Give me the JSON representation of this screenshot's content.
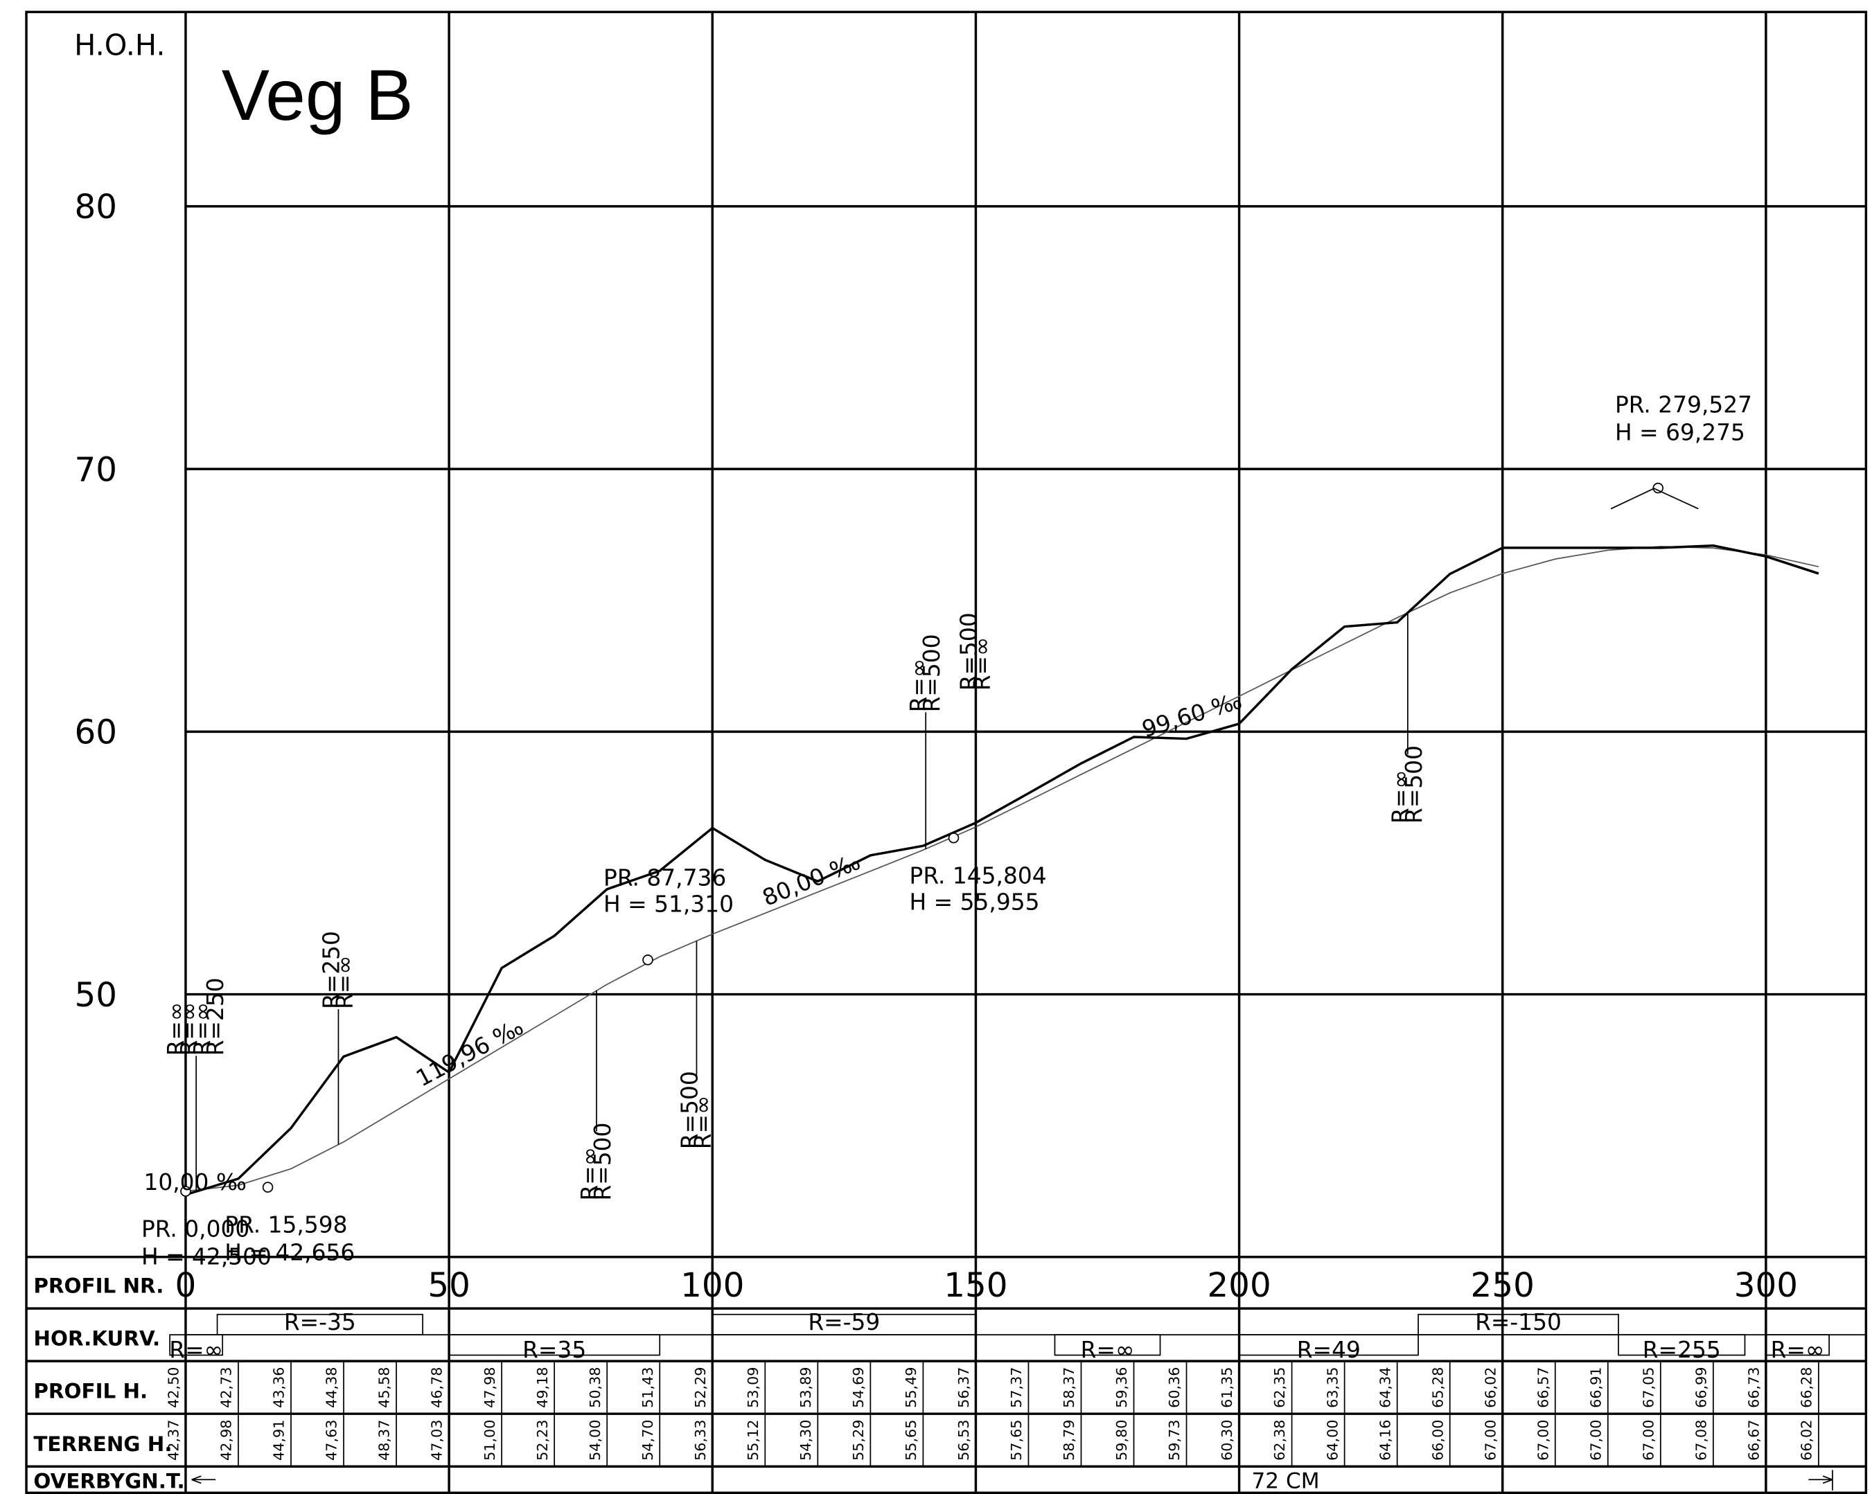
{
  "chart_data": {
    "type": "profile",
    "title": "Veg B",
    "y_axis_label": "H.O.H.",
    "x_axis_label": "PROFIL NR.",
    "xlim": [
      0,
      319
    ],
    "ylim": [
      40,
      87.4
    ],
    "xticks": [
      0,
      50,
      100,
      150,
      200,
      250,
      300
    ],
    "yticks": [
      50,
      60,
      70,
      80
    ],
    "grid": true,
    "x": [
      0,
      10,
      20,
      30,
      40,
      50,
      60,
      70,
      80,
      90,
      100,
      110,
      120,
      130,
      140,
      150,
      160,
      170,
      180,
      190,
      200,
      210,
      220,
      230,
      240,
      250,
      260,
      270,
      280,
      290,
      300,
      310
    ],
    "series": [
      {
        "name": "PROFIL H.",
        "color": "#555555",
        "values": [
          42.5,
          42.73,
          43.36,
          44.38,
          45.58,
          46.78,
          47.98,
          49.18,
          50.38,
          51.43,
          52.29,
          53.09,
          53.89,
          54.69,
          55.49,
          56.37,
          57.37,
          58.37,
          59.36,
          60.36,
          61.35,
          62.35,
          63.35,
          64.34,
          65.28,
          66.02,
          66.57,
          66.91,
          67.05,
          66.99,
          66.73,
          66.28
        ],
        "value_labels": [
          "42,50",
          "42,73",
          "43,36",
          "44,38",
          "45,58",
          "46,78",
          "47,98",
          "49,18",
          "50,38",
          "51,43",
          "52,29",
          "53,09",
          "53,89",
          "54,69",
          "55,49",
          "56,37",
          "57,37",
          "58,37",
          "59,36",
          "60,36",
          "61,35",
          "62,35",
          "63,35",
          "64,34",
          "65,28",
          "66,02",
          "66,57",
          "66,91",
          "67,05",
          "66,99",
          "66,73",
          "66,28"
        ]
      },
      {
        "name": "TERRENG H.",
        "color": "#000000",
        "values": [
          42.37,
          42.98,
          44.91,
          47.63,
          48.37,
          47.03,
          51.0,
          52.23,
          54.0,
          54.7,
          56.33,
          55.12,
          54.3,
          55.29,
          55.65,
          56.53,
          57.65,
          58.79,
          59.8,
          59.73,
          60.3,
          62.38,
          64.0,
          64.16,
          66.0,
          67.0,
          67.0,
          67.0,
          67.0,
          67.08,
          66.67,
          66.02
        ],
        "value_labels": [
          "42,37",
          "42,98",
          "44,91",
          "47,63",
          "48,37",
          "47,03",
          "51,00",
          "52,23",
          "54,00",
          "54,70",
          "56,33",
          "55,12",
          "54,30",
          "55,29",
          "55,65",
          "56,53",
          "57,65",
          "58,79",
          "59,80",
          "59,73",
          "60,30",
          "62,38",
          "64,00",
          "64,16",
          "66,00",
          "67,00",
          "67,00",
          "67,00",
          "67,00",
          "67,08",
          "66,67",
          "66,02"
        ]
      }
    ],
    "points": [
      {
        "label": "PR. 0,000",
        "h_label": "H = 42,500",
        "x": 0,
        "y": 42.5
      },
      {
        "label": "PR. 15,598",
        "h_label": "H = 42,656",
        "x": 15.598,
        "y": 42.656
      },
      {
        "label": "PR. 87,736",
        "h_label": "H = 51,310",
        "x": 87.736,
        "y": 51.31
      },
      {
        "label": "PR. 145,804",
        "h_label": "H = 55,955",
        "x": 145.804,
        "y": 55.955
      },
      {
        "label": "PR. 279,527",
        "h_label": "H = 69,275",
        "x": 279.527,
        "y": 69.275
      }
    ],
    "grades": [
      "10,00 ‰",
      "119,96 ‰",
      "80,00 ‰",
      "99,60 ‰"
    ],
    "curves": [
      {
        "x": 2,
        "labels": [
          "R=∞",
          "R=∞",
          "R=∞",
          "R=250"
        ]
      },
      {
        "x": 29,
        "labels": [
          "R=250",
          "R=∞"
        ]
      },
      {
        "x": 78,
        "labels": [
          "R=∞",
          "R=500"
        ]
      },
      {
        "x": 97,
        "labels": [
          "R=500",
          "R=∞"
        ]
      },
      {
        "x": 140.5,
        "labels": [
          "R=∞",
          "R=500"
        ]
      },
      {
        "x": 150,
        "labels": [
          "R=500",
          "R=∞"
        ]
      },
      {
        "x": 232,
        "labels": [
          "R=∞",
          "R=500"
        ]
      }
    ],
    "hor_kurv_label": "HOR.KURV.",
    "hor_kurv": [
      {
        "label": "R=∞",
        "x": [
          -3,
          7
        ],
        "side": "lower"
      },
      {
        "label": "R=-35",
        "x": [
          6,
          45
        ],
        "side": "upper"
      },
      {
        "label": "R=35",
        "x": [
          50,
          90
        ],
        "side": "lower"
      },
      {
        "label": "R=-59",
        "x": [
          100,
          150
        ],
        "side": "upper"
      },
      {
        "label": "R=∞",
        "x": [
          165,
          185
        ],
        "side": "lower"
      },
      {
        "label": "R=49",
        "x": [
          200,
          234
        ],
        "side": "lower"
      },
      {
        "label": "R=-150",
        "x": [
          234,
          272
        ],
        "side": "upper"
      },
      {
        "label": "R=255",
        "x": [
          272,
          296
        ],
        "side": "lower"
      },
      {
        "label": "R=∞",
        "x": [
          300,
          312
        ],
        "side": "lower"
      }
    ],
    "overbygn_label": "OVERBYGN.T.",
    "overbygn": "72 CM"
  }
}
